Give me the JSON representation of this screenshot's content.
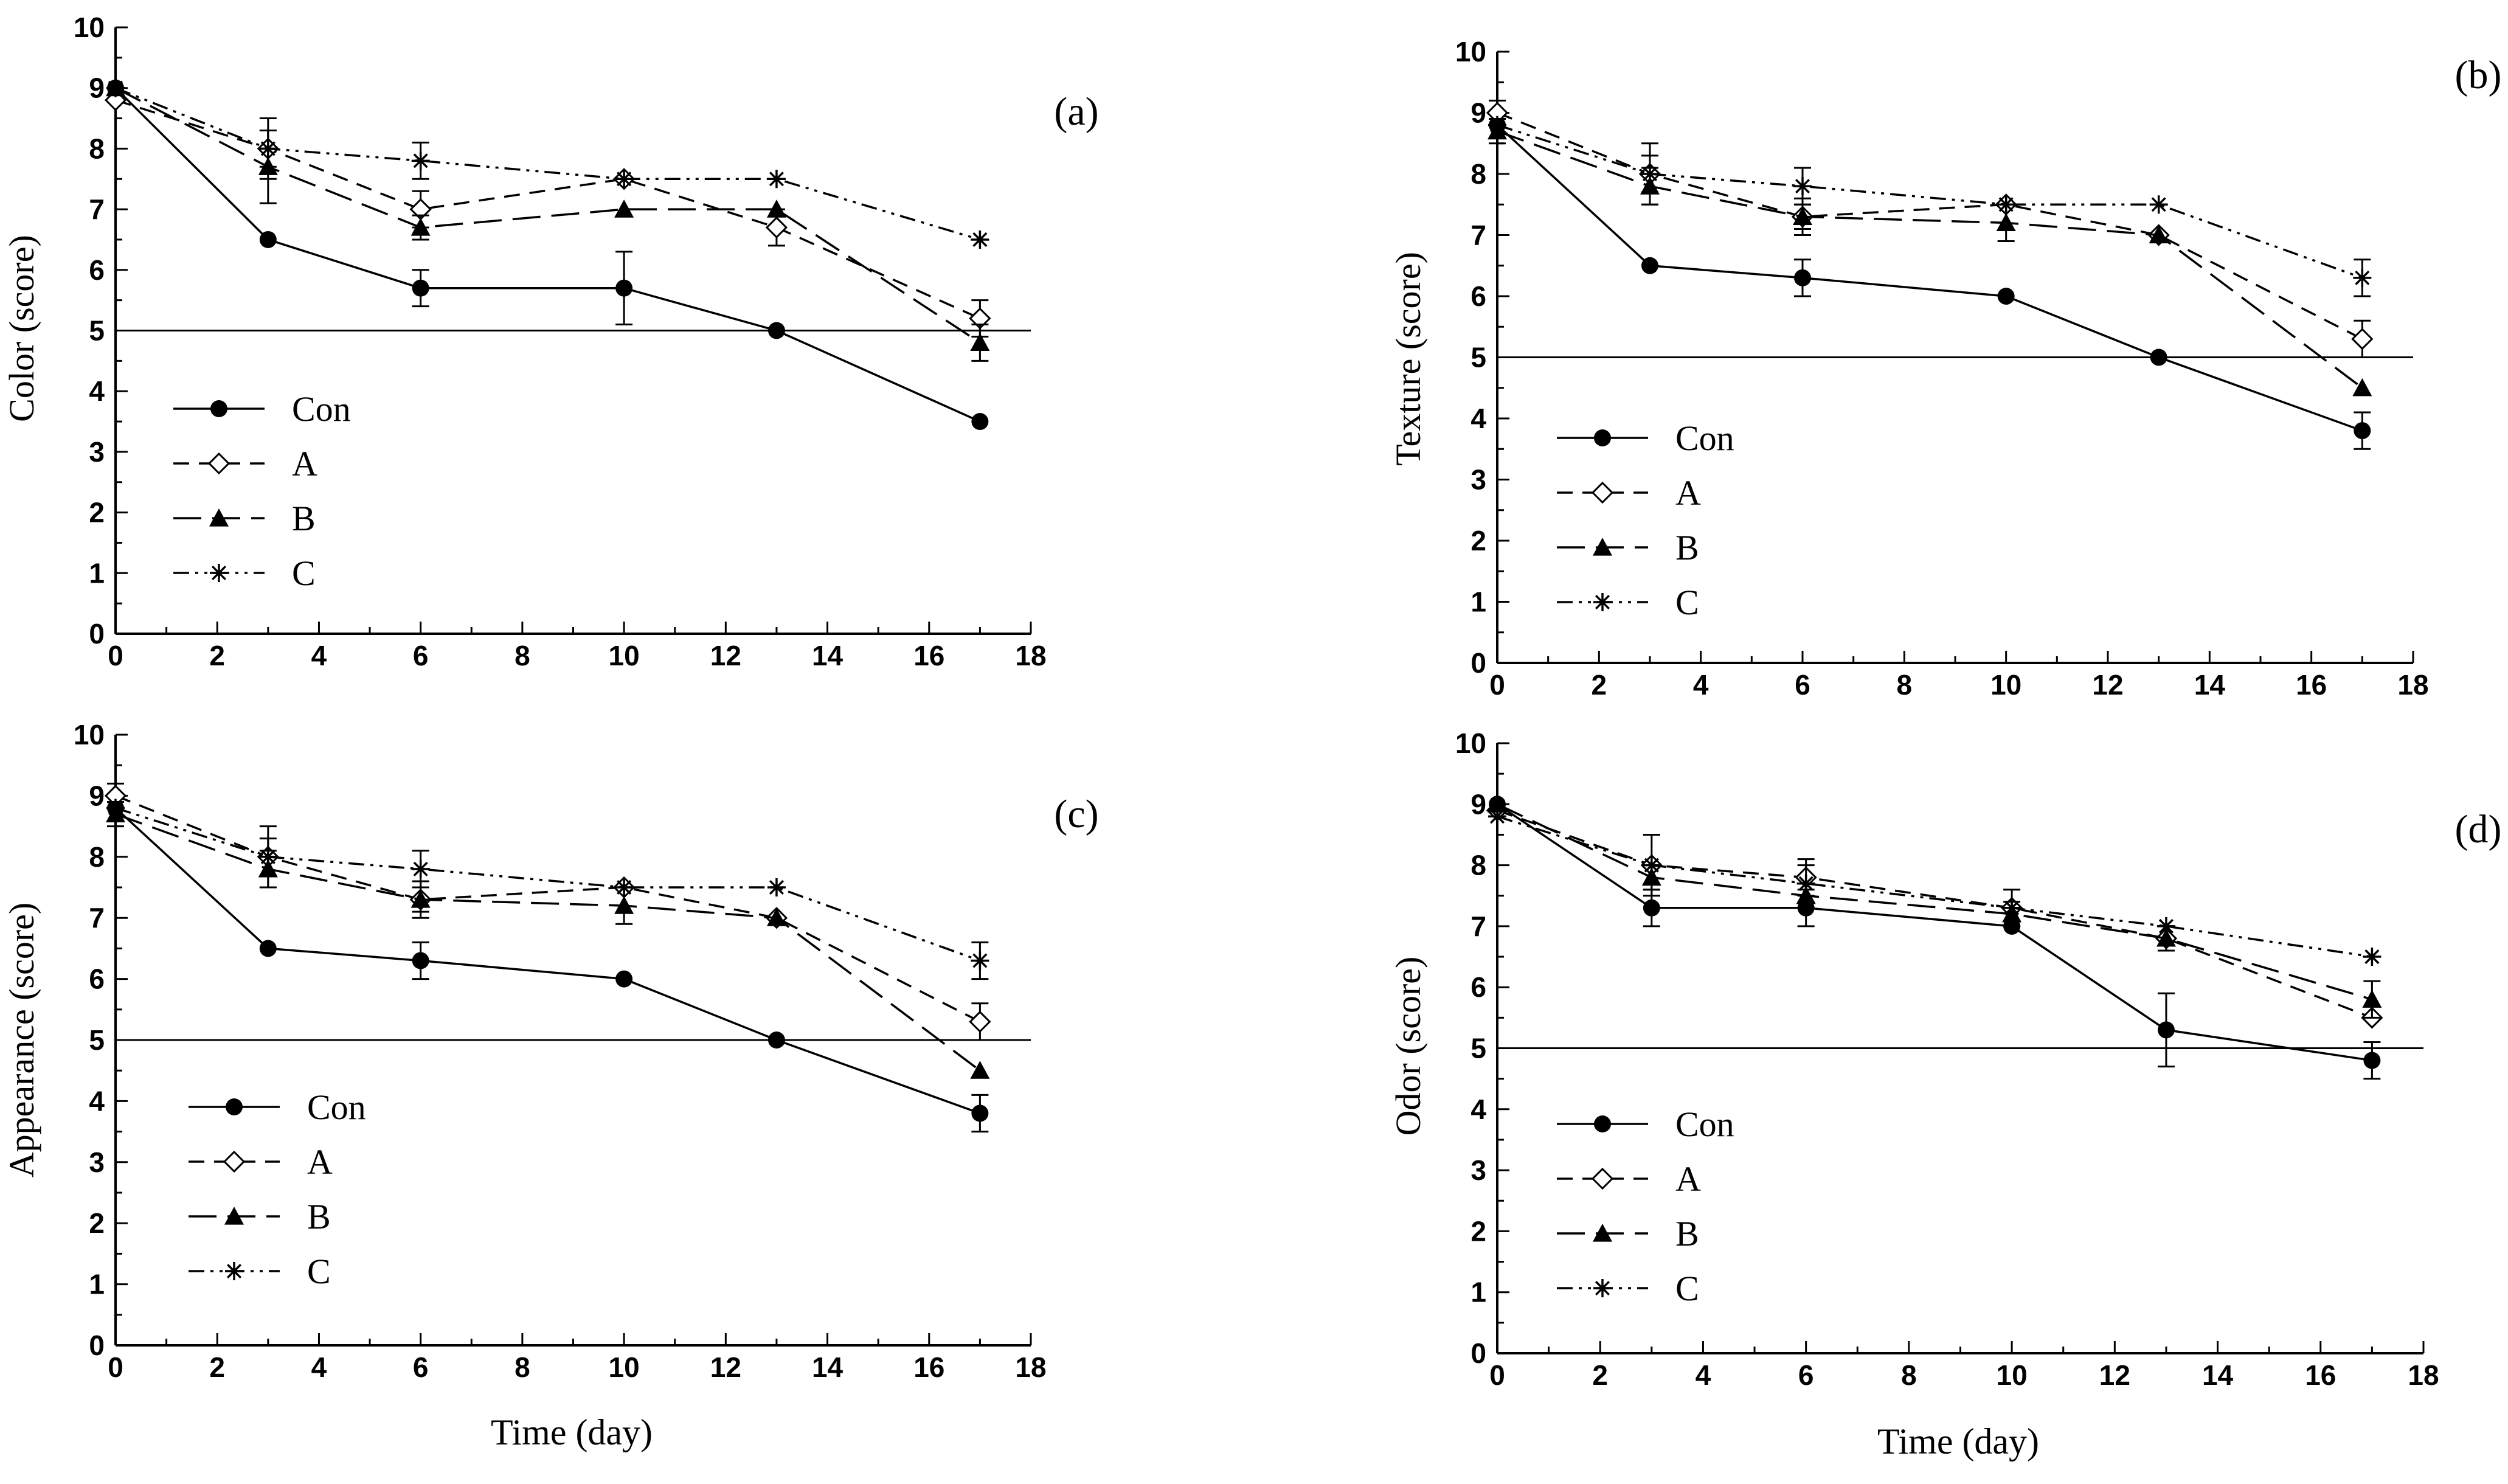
{
  "figure": {
    "background": "#ffffff",
    "ink": "#000000"
  },
  "chart_data": [
    {
      "type": "line",
      "panel_label": "(a)",
      "ylabel": "Color (score)",
      "xlabel": "",
      "xlim": [
        0,
        18
      ],
      "ylim": [
        0,
        10
      ],
      "xticks": [
        "0",
        "2",
        "4",
        "6",
        "8",
        "10",
        "12",
        "14",
        "16",
        "18"
      ],
      "yticks": [
        "0",
        "1",
        "2",
        "3",
        "4",
        "5",
        "6",
        "7",
        "8",
        "9",
        "10"
      ],
      "reference_line_y": 5,
      "x": [
        0,
        3,
        6,
        10,
        13,
        17
      ],
      "series": [
        {
          "name": "Con",
          "marker": "filled-circle",
          "dash": "solid",
          "values": [
            9.0,
            6.5,
            5.7,
            5.7,
            5.0,
            3.5
          ],
          "errors": [
            0,
            0,
            0.3,
            0.6,
            0,
            0
          ]
        },
        {
          "name": "A",
          "marker": "open-diamond",
          "dash": "dashed",
          "values": [
            8.8,
            8.0,
            7.0,
            7.5,
            6.7,
            5.2
          ],
          "errors": [
            0,
            0.3,
            0.3,
            0,
            0.3,
            0.3
          ]
        },
        {
          "name": "B",
          "marker": "filled-triangle",
          "dash": "long-dash",
          "values": [
            9.0,
            7.7,
            6.7,
            7.0,
            7.0,
            4.8
          ],
          "errors": [
            0,
            0.6,
            0.2,
            0,
            0,
            0.3
          ]
        },
        {
          "name": "C",
          "marker": "asterisk",
          "dash": "dash-dot-dot",
          "values": [
            9.0,
            8.0,
            7.8,
            7.5,
            7.5,
            6.5
          ],
          "errors": [
            0,
            0.5,
            0.3,
            0,
            0,
            0
          ]
        }
      ],
      "legend": [
        "Con",
        "A",
        "B",
        "C"
      ],
      "legend_position": "lower-left"
    },
    {
      "type": "line",
      "panel_label": "(b)",
      "ylabel": "Texture (score)",
      "xlabel": "",
      "xlim": [
        0,
        18
      ],
      "ylim": [
        0,
        10
      ],
      "xticks": [
        "0",
        "2",
        "4",
        "6",
        "8",
        "10",
        "12",
        "14",
        "16",
        "18"
      ],
      "yticks": [
        "0",
        "1",
        "2",
        "3",
        "4",
        "5",
        "6",
        "7",
        "8",
        "9",
        "10"
      ],
      "reference_line_y": 5,
      "x": [
        0,
        3,
        6,
        10,
        13,
        17
      ],
      "series": [
        {
          "name": "Con",
          "marker": "filled-circle",
          "dash": "solid",
          "values": [
            8.8,
            6.5,
            6.3,
            6.0,
            5.0,
            3.8
          ],
          "errors": [
            0,
            0,
            0.3,
            0,
            0,
            0.3
          ]
        },
        {
          "name": "A",
          "marker": "open-diamond",
          "dash": "dashed",
          "values": [
            9.0,
            8.0,
            7.3,
            7.5,
            7.0,
            5.3
          ],
          "errors": [
            0.2,
            0.3,
            0.3,
            0,
            0,
            0.3
          ]
        },
        {
          "name": "B",
          "marker": "filled-triangle",
          "dash": "long-dash",
          "values": [
            8.7,
            7.8,
            7.3,
            7.2,
            7.0,
            4.5
          ],
          "errors": [
            0.2,
            0.3,
            0.2,
            0.3,
            0,
            0
          ]
        },
        {
          "name": "C",
          "marker": "asterisk",
          "dash": "dash-dot-dot",
          "values": [
            8.8,
            8.0,
            7.8,
            7.5,
            7.5,
            6.3
          ],
          "errors": [
            0,
            0.5,
            0.3,
            0,
            0,
            0.3
          ]
        }
      ],
      "legend": [
        "Con",
        "A",
        "B",
        "C"
      ],
      "legend_position": "lower-left"
    },
    {
      "type": "line",
      "panel_label": "(c)",
      "ylabel": "Appearance (score)",
      "xlabel": "Time (day)",
      "xlim": [
        0,
        18
      ],
      "ylim": [
        0,
        10
      ],
      "xticks": [
        "0",
        "2",
        "4",
        "6",
        "8",
        "10",
        "12",
        "14",
        "16",
        "18"
      ],
      "yticks": [
        "0",
        "1",
        "2",
        "3",
        "4",
        "5",
        "6",
        "7",
        "8",
        "9",
        "10"
      ],
      "reference_line_y": 5,
      "x": [
        0,
        3,
        6,
        10,
        13,
        17
      ],
      "series": [
        {
          "name": "Con",
          "marker": "filled-circle",
          "dash": "solid",
          "values": [
            8.8,
            6.5,
            6.3,
            6.0,
            5.0,
            3.8
          ],
          "errors": [
            0,
            0,
            0.3,
            0,
            0,
            0.3
          ]
        },
        {
          "name": "A",
          "marker": "open-diamond",
          "dash": "dashed",
          "values": [
            9.0,
            8.0,
            7.3,
            7.5,
            7.0,
            5.3
          ],
          "errors": [
            0.2,
            0.3,
            0.3,
            0,
            0,
            0.3
          ]
        },
        {
          "name": "B",
          "marker": "filled-triangle",
          "dash": "long-dash",
          "values": [
            8.7,
            7.8,
            7.3,
            7.2,
            7.0,
            4.5
          ],
          "errors": [
            0.2,
            0.3,
            0.2,
            0.3,
            0,
            0
          ]
        },
        {
          "name": "C",
          "marker": "asterisk",
          "dash": "dash-dot-dot",
          "values": [
            8.8,
            8.0,
            7.8,
            7.5,
            7.5,
            6.3
          ],
          "errors": [
            0,
            0.5,
            0.3,
            0,
            0,
            0.3
          ]
        }
      ],
      "legend": [
        "Con",
        "A",
        "B",
        "C"
      ],
      "legend_position": "lower-left"
    },
    {
      "type": "line",
      "panel_label": "(d)",
      "ylabel": "Odor (score)",
      "xlabel": "Time (day)",
      "xlim": [
        0,
        18
      ],
      "ylim": [
        0,
        10
      ],
      "xticks": [
        "0",
        "2",
        "4",
        "6",
        "8",
        "10",
        "12",
        "14",
        "16",
        "18"
      ],
      "yticks": [
        "0",
        "1",
        "2",
        "3",
        "4",
        "5",
        "6",
        "7",
        "8",
        "9",
        "10"
      ],
      "reference_line_y": 5,
      "x": [
        0,
        3,
        6,
        10,
        13,
        17
      ],
      "series": [
        {
          "name": "Con",
          "marker": "filled-circle",
          "dash": "solid",
          "values": [
            9.0,
            7.3,
            7.3,
            7.0,
            5.3,
            4.8
          ],
          "errors": [
            0,
            0.3,
            0.3,
            0,
            0.6,
            0.3
          ]
        },
        {
          "name": "A",
          "marker": "open-diamond",
          "dash": "dashed",
          "values": [
            8.9,
            8.0,
            7.8,
            7.3,
            6.8,
            5.5
          ],
          "errors": [
            0,
            0.5,
            0.3,
            0.3,
            0.2,
            0
          ]
        },
        {
          "name": "B",
          "marker": "filled-triangle",
          "dash": "long-dash",
          "values": [
            9.0,
            7.8,
            7.5,
            7.2,
            6.8,
            5.8
          ],
          "errors": [
            0,
            0.2,
            0.2,
            0.2,
            0.2,
            0.3
          ]
        },
        {
          "name": "C",
          "marker": "asterisk",
          "dash": "dash-dot-dot",
          "values": [
            8.8,
            8.0,
            7.7,
            7.3,
            7.0,
            6.5
          ],
          "errors": [
            0,
            0,
            0.3,
            0,
            0,
            0
          ]
        }
      ],
      "legend": [
        "Con",
        "A",
        "B",
        "C"
      ],
      "legend_position": "lower-left"
    }
  ]
}
